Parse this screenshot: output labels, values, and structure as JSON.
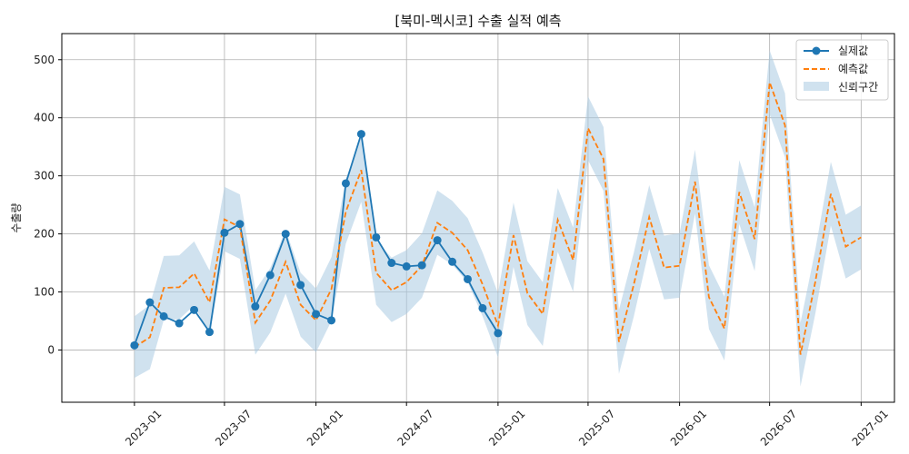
{
  "chart_data": {
    "type": "line",
    "title": "[북미-멕시코] 수출 실적 예측",
    "xlabel": "",
    "ylabel": "수출량",
    "grid": true,
    "legend_position": "top-right",
    "x_ticks": [
      "2023-01",
      "2023-07",
      "2024-01",
      "2024-07",
      "2025-01",
      "2025-07",
      "2026-01",
      "2026-07",
      "2027-01"
    ],
    "y_ticks": [
      0,
      100,
      200,
      300,
      400,
      500
    ],
    "ylim": [
      -90,
      545
    ],
    "xlim": [
      "2022-08-08",
      "2027-03-09"
    ],
    "colors": {
      "actual": "#1f77b4",
      "forecast": "#ff7f0e",
      "interval": "#aacbe2"
    },
    "series": [
      {
        "name": "실제값",
        "style": "solid-with-markers",
        "x": [
          "2023-01",
          "2023-02",
          "2023-03",
          "2023-04",
          "2023-05",
          "2023-06",
          "2023-07",
          "2023-08",
          "2023-09",
          "2023-10",
          "2023-11",
          "2023-12",
          "2024-01",
          "2024-02",
          "2024-03",
          "2024-04",
          "2024-05",
          "2024-06",
          "2024-07",
          "2024-08",
          "2024-09",
          "2024-10",
          "2024-11",
          "2024-12",
          "2025-01"
        ],
        "values": [
          8,
          82,
          58,
          46,
          69,
          31,
          202,
          217,
          75,
          129,
          200,
          112,
          62,
          51,
          287,
          372,
          194,
          150,
          144,
          146,
          189,
          152,
          122,
          72,
          29
        ]
      },
      {
        "name": "예측값",
        "style": "dashed",
        "x": [
          "2023-01",
          "2023-02",
          "2023-03",
          "2023-04",
          "2023-05",
          "2023-06",
          "2023-07",
          "2023-08",
          "2023-09",
          "2023-10",
          "2023-11",
          "2023-12",
          "2024-01",
          "2024-02",
          "2024-03",
          "2024-04",
          "2024-05",
          "2024-06",
          "2024-07",
          "2024-08",
          "2024-09",
          "2024-10",
          "2024-11",
          "2024-12",
          "2025-01",
          "2025-02",
          "2025-03",
          "2025-04",
          "2025-05",
          "2025-06",
          "2025-07",
          "2025-08",
          "2025-09",
          "2025-10",
          "2025-11",
          "2025-12",
          "2026-01",
          "2026-02",
          "2026-03",
          "2026-04",
          "2026-05",
          "2026-06",
          "2026-07",
          "2026-08",
          "2026-09",
          "2026-10",
          "2026-11",
          "2026-12",
          "2027-01"
        ],
        "values": [
          5,
          22,
          107,
          108,
          132,
          82,
          225,
          212,
          47,
          85,
          152,
          78,
          51,
          105,
          238,
          310,
          133,
          103,
          117,
          145,
          219,
          202,
          172,
          113,
          42,
          198,
          98,
          62,
          224,
          155,
          382,
          329,
          14,
          113,
          229,
          142,
          145,
          290,
          91,
          37,
          272,
          191,
          461,
          387,
          -8,
          118,
          269,
          178,
          194
        ]
      }
    ],
    "confidence_interval": {
      "name": "신뢰구간",
      "x": [
        "2023-01",
        "2023-02",
        "2023-03",
        "2023-04",
        "2023-05",
        "2023-06",
        "2023-07",
        "2023-08",
        "2023-09",
        "2023-10",
        "2023-11",
        "2023-12",
        "2024-01",
        "2024-02",
        "2024-03",
        "2024-04",
        "2024-05",
        "2024-06",
        "2024-07",
        "2024-08",
        "2024-09",
        "2024-10",
        "2024-11",
        "2024-12",
        "2025-01",
        "2025-02",
        "2025-03",
        "2025-04",
        "2025-05",
        "2025-06",
        "2025-07",
        "2025-08",
        "2025-09",
        "2025-10",
        "2025-11",
        "2025-12",
        "2026-01",
        "2026-02",
        "2026-03",
        "2026-04",
        "2026-05",
        "2026-06",
        "2026-07",
        "2026-08",
        "2026-09",
        "2026-10",
        "2026-11",
        "2026-12",
        "2027-01"
      ],
      "upper": [
        58,
        78,
        162,
        163,
        187,
        137,
        281,
        268,
        103,
        141,
        207,
        133,
        106,
        160,
        294,
        366,
        188,
        159,
        172,
        201,
        275,
        257,
        227,
        168,
        98,
        254,
        153,
        117,
        279,
        211,
        437,
        384,
        69,
        168,
        284,
        197,
        201,
        345,
        146,
        92,
        327,
        246,
        516,
        442,
        47,
        173,
        324,
        233,
        249
      ],
      "lower": [
        -48,
        -33,
        52,
        53,
        77,
        27,
        170,
        157,
        -8,
        30,
        97,
        23,
        -4,
        50,
        183,
        255,
        78,
        48,
        62,
        90,
        164,
        147,
        117,
        58,
        -13,
        143,
        43,
        7,
        169,
        100,
        327,
        274,
        -41,
        58,
        174,
        87,
        90,
        235,
        36,
        -18,
        217,
        136,
        406,
        332,
        -63,
        63,
        214,
        123,
        139
      ]
    }
  }
}
